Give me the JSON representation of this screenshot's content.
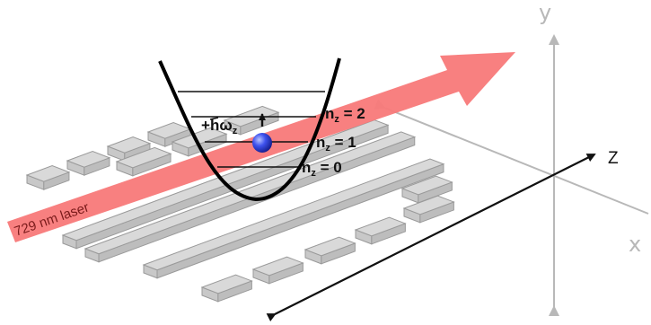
{
  "laser": {
    "label": "729 nm laser",
    "color": "#f87979"
  },
  "axes": {
    "y": "y",
    "x": "x",
    "z": "Z"
  },
  "trap": {
    "quantum_label": {
      "prefix": "+",
      "h": "h",
      "omega": "ω",
      "sub": "z"
    },
    "levels": [
      {
        "n": "n",
        "sub": "z",
        "value": " = 2"
      },
      {
        "n": "n",
        "sub": "z",
        "value": " = 1"
      },
      {
        "n": "n",
        "sub": "z",
        "value": " = 0"
      }
    ]
  },
  "colors": {
    "electrode_top": "#d9d9d9",
    "electrode_front": "#bdbdbd",
    "electrode_stroke": "#9a9a9a",
    "ion": "#2b3bd9",
    "gray_axis": "#b8b8b8"
  }
}
